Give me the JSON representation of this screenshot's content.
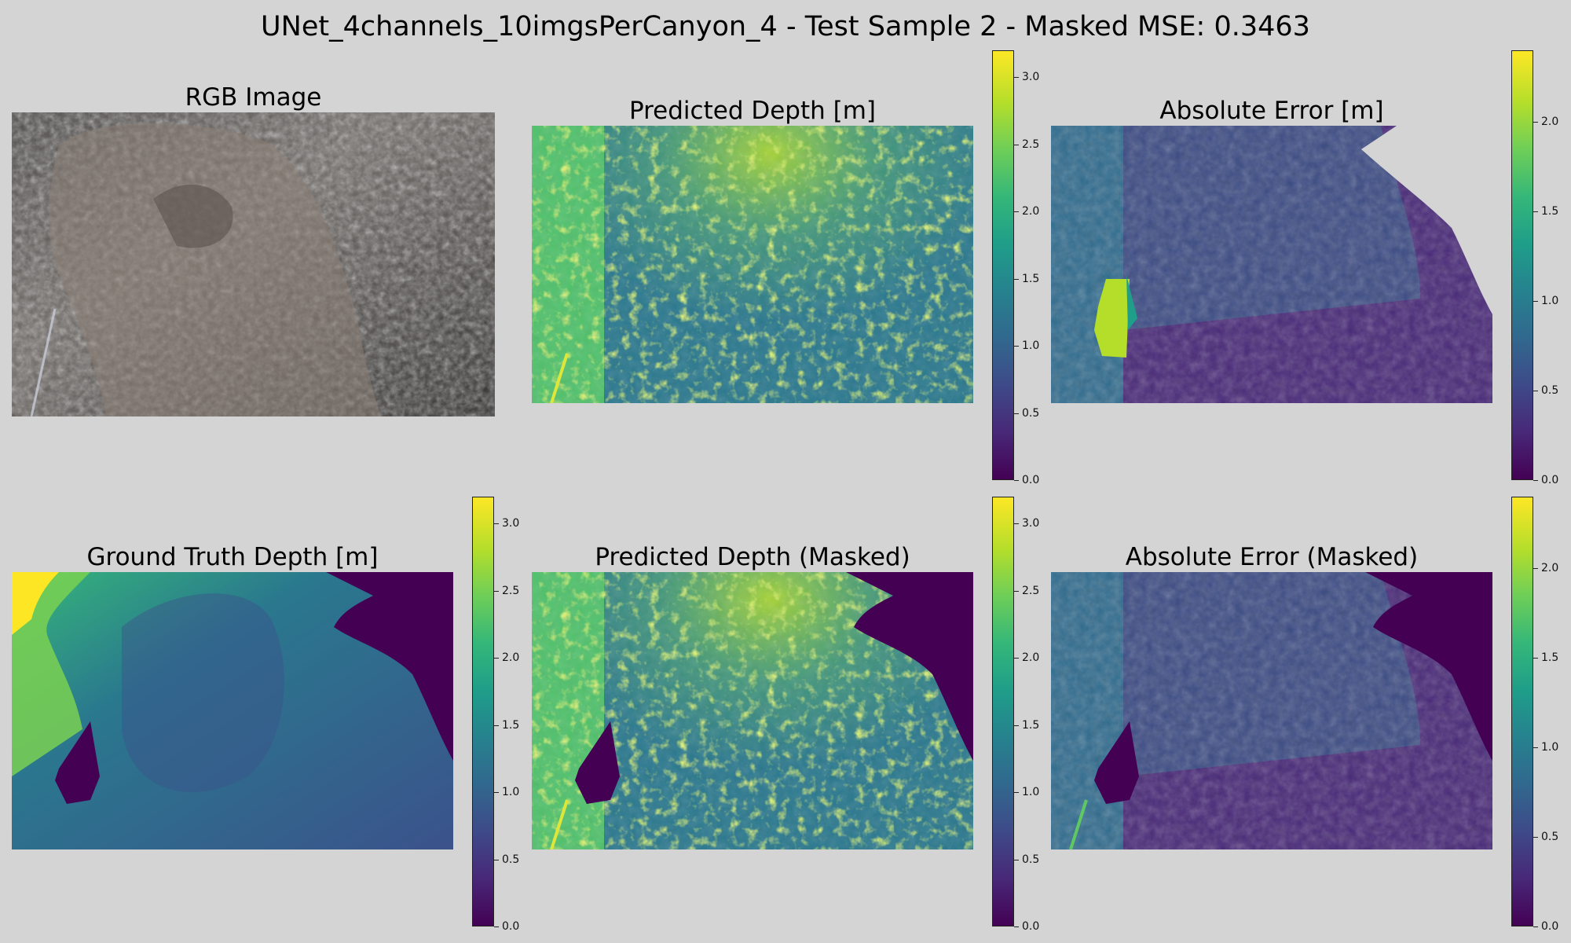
{
  "figure": {
    "title": "UNet_4channels_10imgsPerCanyon_4 - Test Sample 2 - Masked MSE: 0.3463"
  },
  "chart_data": [
    {
      "type": "heatmap",
      "title": "RGB Image",
      "content": "underwater photograph of a rocky canyon wall with a thin survey rod at lower left"
    },
    {
      "type": "heatmap",
      "title": "Predicted Depth [m]",
      "colormap": "viridis",
      "colorbar_range": [
        0.0,
        3.2
      ],
      "colorbar_ticks": [
        "0.0",
        "0.5",
        "1.0",
        "1.5",
        "2.0",
        "2.5",
        "3.0"
      ]
    },
    {
      "type": "heatmap",
      "title": "Absolute Error [m]",
      "colormap": "viridis",
      "colorbar_range": [
        0.0,
        2.4
      ],
      "colorbar_ticks": [
        "0.0",
        "0.5",
        "1.0",
        "1.5",
        "2.0"
      ]
    },
    {
      "type": "heatmap",
      "title": "Ground Truth Depth [m]",
      "colormap": "viridis",
      "colorbar_range": [
        0.0,
        3.2
      ],
      "colorbar_ticks": [
        "0.0",
        "0.5",
        "1.0",
        "1.5",
        "2.0",
        "2.5",
        "3.0"
      ]
    },
    {
      "type": "heatmap",
      "title": "Predicted Depth (Masked)",
      "colormap": "viridis",
      "colorbar_range": [
        0.0,
        3.2
      ],
      "colorbar_ticks": [
        "0.0",
        "0.5",
        "1.0",
        "1.5",
        "2.0",
        "2.5",
        "3.0"
      ]
    },
    {
      "type": "heatmap",
      "title": "Absolute Error (Masked)",
      "colormap": "viridis",
      "colorbar_range": [
        0.0,
        2.4
      ],
      "colorbar_ticks": [
        "0.0",
        "0.5",
        "1.0",
        "1.5",
        "2.0"
      ]
    }
  ],
  "colors": {
    "background": "#d4d4d4",
    "viridis": [
      "#440154",
      "#482878",
      "#3e4a89",
      "#31688e",
      "#26828e",
      "#1f9e89",
      "#35b779",
      "#6ece58",
      "#b5de2b",
      "#fde725"
    ]
  }
}
